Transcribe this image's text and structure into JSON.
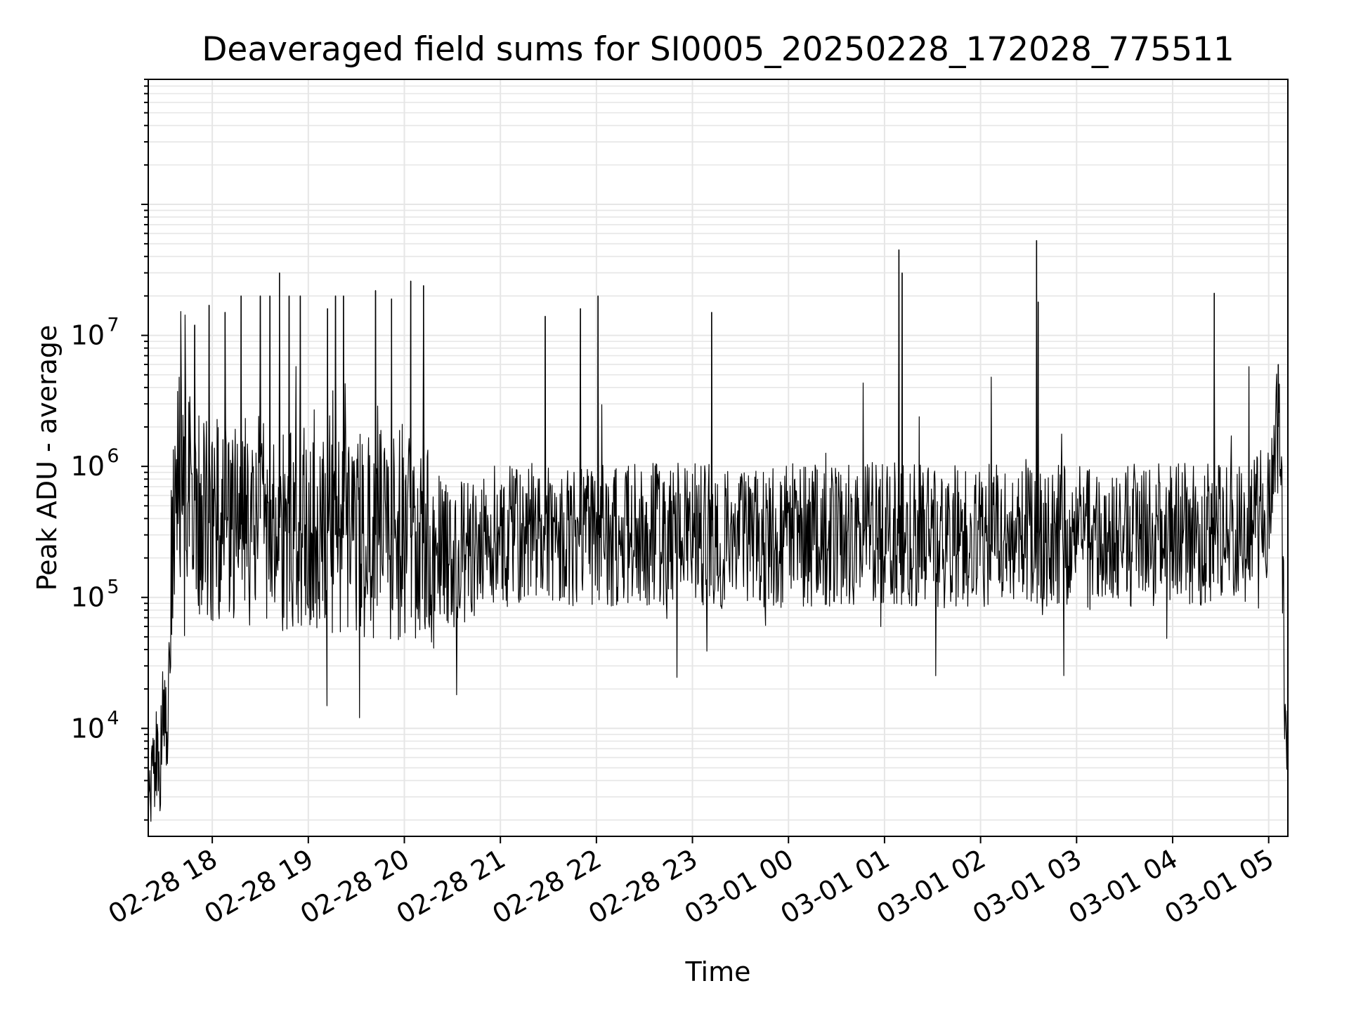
{
  "chart_data": {
    "type": "line",
    "title": "Deaveraged field sums for SI0005_20250228_172028_775511",
    "xlabel": "Time",
    "ylabel": "Peak ADU - average",
    "x_range": [
      "02-28 17:20",
      "03-01 05:12"
    ],
    "ylim": [
      1500,
      900000000
    ],
    "yscale": "log",
    "grid": true,
    "line_color": "#000000",
    "grid_color": "#e6e6e6",
    "x_ticks": [
      "02-28 18",
      "02-28 19",
      "02-28 20",
      "02-28 21",
      "02-28 22",
      "02-28 23",
      "03-01 00",
      "03-01 01",
      "03-01 02",
      "03-01 03",
      "03-01 04",
      "03-01 05"
    ],
    "y_ticks": [
      {
        "value": 10000,
        "base": "10",
        "exp": "4"
      },
      {
        "value": 100000,
        "base": "10",
        "exp": "5"
      },
      {
        "value": 1000000,
        "base": "10",
        "exp": "6"
      },
      {
        "value": 10000000,
        "base": "10",
        "exp": "7"
      }
    ],
    "series": [
      {
        "x": [
          "02-28 17:20",
          "02-28 17:24",
          "02-28 17:28",
          "02-28 17:30",
          "02-28 17:32",
          "02-28 17:34",
          "02-28 17:36",
          "02-28 17:40",
          "02-28 17:45",
          "02-28 17:50",
          "02-28 17:55",
          "02-28 18:00",
          "02-28 18:10",
          "02-28 18:20",
          "02-28 18:30",
          "02-28 18:40",
          "02-28 18:50",
          "02-28 19:00",
          "02-28 19:15",
          "02-28 19:30",
          "02-28 19:45",
          "02-28 20:00",
          "02-28 20:15",
          "02-28 20:30",
          "02-28 20:45",
          "02-28 21:00",
          "02-28 21:30",
          "02-28 22:00",
          "02-28 22:30",
          "02-28 23:00",
          "02-28 23:30",
          "03-01 00:00",
          "03-01 00:30",
          "03-01 01:00",
          "03-01 01:30",
          "03-01 02:00",
          "03-01 02:30",
          "03-01 03:00",
          "03-01 03:30",
          "03-01 04:00",
          "03-01 04:30",
          "03-01 04:45",
          "03-01 04:55",
          "03-01 05:00",
          "03-01 05:04",
          "03-01 05:06",
          "03-01 05:08",
          "03-01 05:10",
          "03-01 05:12"
        ],
        "y": [
          3000,
          4500,
          6000,
          20000,
          3000,
          150000,
          600000,
          900000,
          800000,
          500000,
          400000,
          350000,
          400000,
          350000,
          400000,
          350000,
          300000,
          350000,
          300000,
          300000,
          300000,
          300000,
          250000,
          200000,
          250000,
          300000,
          300000,
          300000,
          300000,
          300000,
          280000,
          300000,
          300000,
          320000,
          280000,
          300000,
          320000,
          280000,
          300000,
          300000,
          300000,
          320000,
          400000,
          500000,
          1500000,
          2000000,
          1500000,
          12000,
          8000
        ],
        "spikes": [
          {
            "x": "02-28 17:49",
            "y": 12000000
          },
          {
            "x": "02-28 17:58",
            "y": 17000000
          },
          {
            "x": "02-28 18:08",
            "y": 15000000
          },
          {
            "x": "02-28 18:18",
            "y": 20000000
          },
          {
            "x": "02-28 18:30",
            "y": 20000000
          },
          {
            "x": "02-28 18:36",
            "y": 20000000
          },
          {
            "x": "02-28 18:42",
            "y": 30000000
          },
          {
            "x": "02-28 18:48",
            "y": 20000000
          },
          {
            "x": "02-28 18:55",
            "y": 20000000
          },
          {
            "x": "02-28 19:12",
            "y": 16000000
          },
          {
            "x": "02-28 19:17",
            "y": 20000000
          },
          {
            "x": "02-28 19:22",
            "y": 20000000
          },
          {
            "x": "02-28 19:42",
            "y": 22000000
          },
          {
            "x": "02-28 19:52",
            "y": 19000000
          },
          {
            "x": "02-28 20:04",
            "y": 26000000
          },
          {
            "x": "02-28 20:12",
            "y": 24000000
          },
          {
            "x": "02-28 21:28",
            "y": 14000000
          },
          {
            "x": "02-28 21:50",
            "y": 16000000
          },
          {
            "x": "02-28 22:01",
            "y": 20000000
          },
          {
            "x": "02-28 23:12",
            "y": 15000000
          },
          {
            "x": "03-01 01:09",
            "y": 45000000
          },
          {
            "x": "03-01 01:11",
            "y": 30000000
          },
          {
            "x": "03-01 02:35",
            "y": 53000000
          },
          {
            "x": "03-01 02:36",
            "y": 18000000
          },
          {
            "x": "03-01 04:26",
            "y": 21000000
          },
          {
            "x": "03-01 05:06",
            "y": 6000000
          }
        ]
      }
    ]
  }
}
